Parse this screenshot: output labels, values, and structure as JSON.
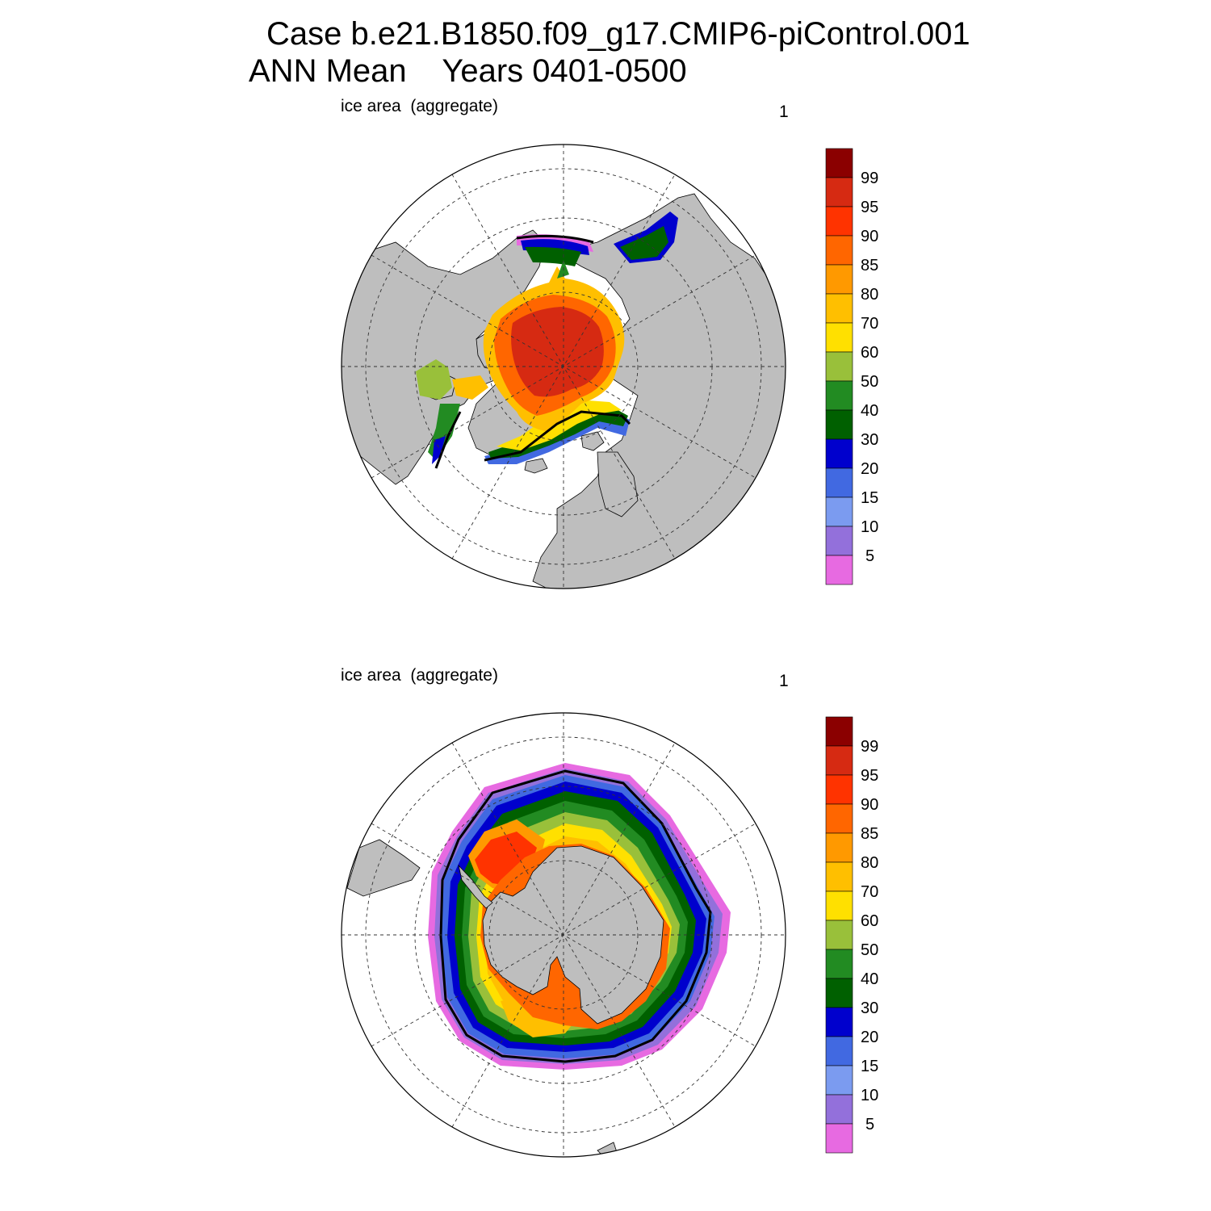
{
  "title": {
    "line1": "Case b.e21.B1850.f09_g17.CMIP6-piControl.001",
    "line2": "ANN Mean    Years 0401-0500"
  },
  "colors": {
    "land": "#bebebe",
    "ocean": "#ffffff",
    "graticule": "#333333",
    "contour": "#000000"
  },
  "colorbar": {
    "levels": [
      "99",
      "95",
      "90",
      "85",
      "80",
      "70",
      "60",
      "50",
      "40",
      "30",
      "20",
      "15",
      "10",
      "5"
    ],
    "colors": [
      "#8b0000",
      "#d62a12",
      "#ff3300",
      "#ff6600",
      "#ff9900",
      "#ffbf00",
      "#ffe000",
      "#99c03a",
      "#228b22",
      "#006000",
      "#0000cd",
      "#4169e1",
      "#7b9bf0",
      "#9370db",
      "#e76ae1"
    ]
  },
  "panels": [
    {
      "id": "north",
      "label": "ice area  (aggregate)",
      "number": "1",
      "hemisphere": "Northern Hemisphere"
    },
    {
      "id": "south",
      "label": "ice area  (aggregate)",
      "number": "1",
      "hemisphere": "Southern Hemisphere"
    }
  ]
}
